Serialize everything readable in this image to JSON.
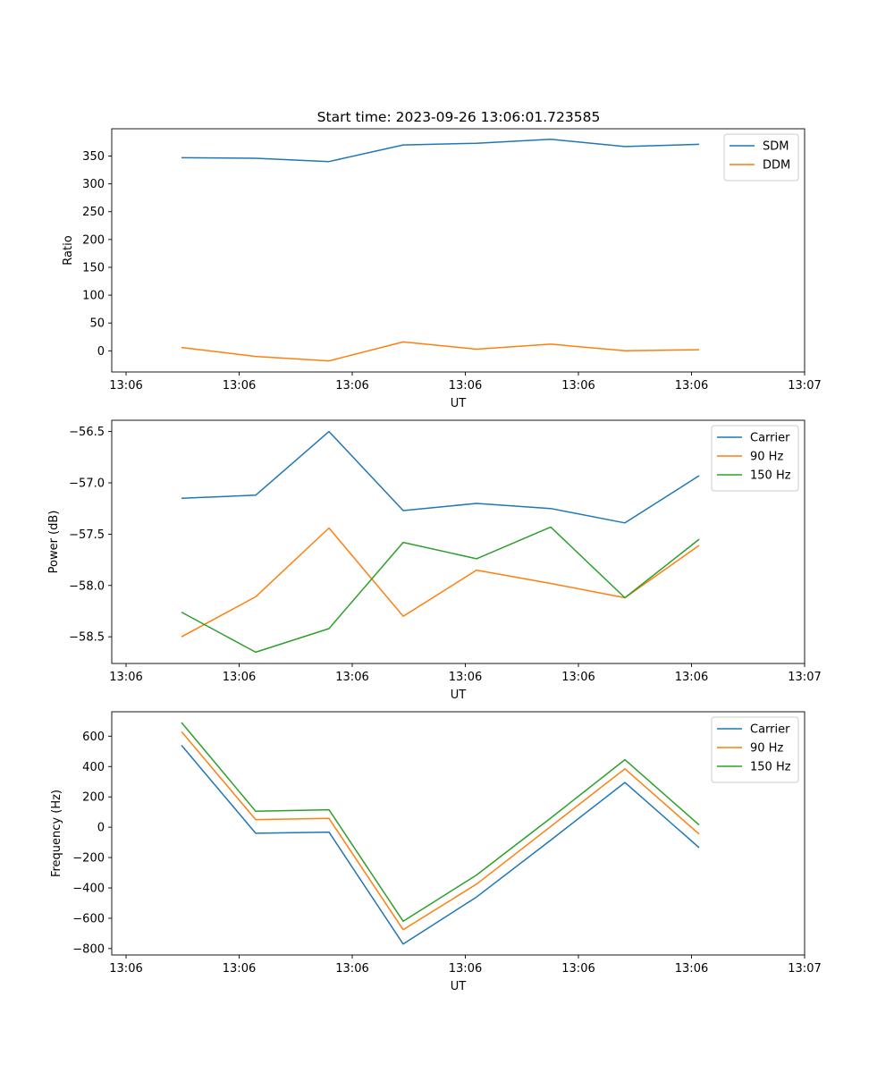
{
  "title": "Start time: 2023-09-26 13:06:01.723585",
  "chart_data": [
    {
      "type": "line",
      "ylabel": "Ratio",
      "xlabel": "UT",
      "x_ticks": [
        "13:06",
        "13:06",
        "13:06",
        "13:06",
        "13:06",
        "13:06",
        "13:07"
      ],
      "y_ticks": [
        0,
        50,
        100,
        150,
        200,
        250,
        300,
        350
      ],
      "ylim": [
        -38,
        399
      ],
      "legend_position": "top-right",
      "series": [
        {
          "name": "SDM",
          "color": "#1f77b4",
          "values": [
            347,
            346,
            340,
            370,
            373,
            380,
            367,
            371
          ]
        },
        {
          "name": "DDM",
          "color": "#ff7f0e",
          "values": [
            6,
            -10,
            -18,
            16,
            3,
            12,
            0,
            2
          ]
        }
      ]
    },
    {
      "type": "line",
      "ylabel": "Power (dB)",
      "xlabel": "UT",
      "x_ticks": [
        "13:06",
        "13:06",
        "13:06",
        "13:06",
        "13:06",
        "13:06",
        "13:07"
      ],
      "y_ticks": [
        "−58.5",
        "−58.0",
        "−57.5",
        "−57.0",
        "−56.5"
      ],
      "y_tick_values": [
        -58.5,
        -58.0,
        -57.5,
        -57.0,
        -56.5
      ],
      "ylim": [
        -58.76,
        -56.39
      ],
      "legend_position": "top-right",
      "series": [
        {
          "name": "Carrier",
          "color": "#1f77b4",
          "values": [
            -57.15,
            -57.12,
            -56.5,
            -57.27,
            -57.2,
            -57.25,
            -57.39,
            -56.93
          ]
        },
        {
          "name": "90 Hz",
          "color": "#ff7f0e",
          "values": [
            -58.5,
            -58.11,
            -57.44,
            -58.3,
            -57.85,
            -57.98,
            -58.12,
            -57.61
          ]
        },
        {
          "name": "150 Hz",
          "color": "#2ca02c",
          "values": [
            -58.26,
            -58.65,
            -58.42,
            -57.58,
            -57.74,
            -57.43,
            -58.12,
            -57.55
          ]
        }
      ]
    },
    {
      "type": "line",
      "ylabel": "Frequency (Hz)",
      "xlabel": "UT",
      "x_ticks": [
        "13:06",
        "13:06",
        "13:06",
        "13:06",
        "13:06",
        "13:06",
        "13:07"
      ],
      "y_ticks": [
        "−800",
        "−600",
        "−400",
        "−200",
        "0",
        "200",
        "400",
        "600"
      ],
      "y_tick_values": [
        -800,
        -600,
        -400,
        -200,
        0,
        200,
        400,
        600
      ],
      "ylim": [
        -842,
        761
      ],
      "legend_position": "top-right",
      "series": [
        {
          "name": "Carrier",
          "color": "#1f77b4",
          "values": [
            540,
            -40,
            -32,
            -770,
            -460,
            -85,
            295,
            -135
          ]
        },
        {
          "name": "90 Hz",
          "color": "#ff7f0e",
          "values": [
            630,
            50,
            58,
            -675,
            -375,
            5,
            385,
            -45
          ]
        },
        {
          "name": "150 Hz",
          "color": "#2ca02c",
          "values": [
            690,
            105,
            115,
            -620,
            -315,
            60,
            445,
            15
          ]
        }
      ]
    }
  ]
}
